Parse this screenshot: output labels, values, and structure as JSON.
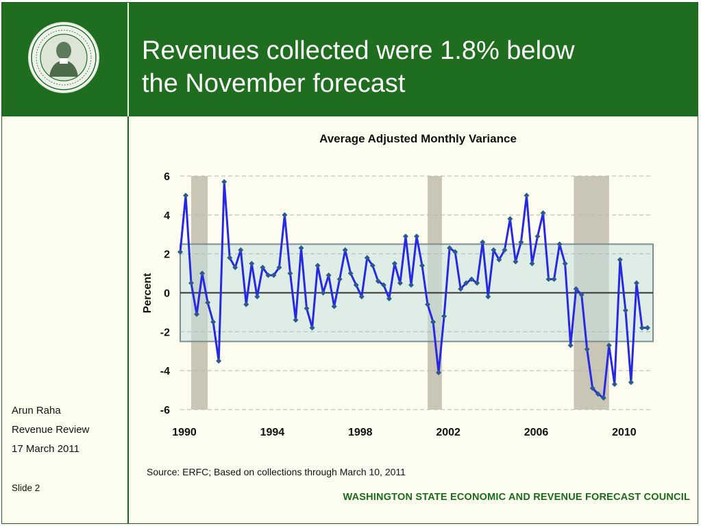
{
  "slide": {
    "title_line1": "Revenues collected were 1.8% below",
    "title_line2": "the November forecast",
    "presenter": "Arun Raha",
    "event": "Revenue Review",
    "date": "17 March 2011",
    "slide_label": "Slide 2",
    "source": "Source: ERFC; Based on collections through March 10, 2011",
    "organization": "WASHINGTON STATE ECONOMIC AND REVENUE FORECAST COUNCIL",
    "logo_icon": "washington-state-seal-icon",
    "colors": {
      "header_green": "#1f6e1f",
      "footer_green": "#1a6b1a",
      "line_blue": "#2727e6"
    }
  },
  "chart_data": {
    "type": "line",
    "title": "Average Adjusted Monthly Variance",
    "ylabel": "Percent",
    "xlabel": "",
    "ylim": [
      -6,
      6
    ],
    "xlim": [
      1990,
      2011.5
    ],
    "x_ticks": [
      1990,
      1994,
      1998,
      2002,
      2006,
      2010
    ],
    "y_ticks": [
      6,
      4,
      2,
      0,
      -2,
      -4,
      -6
    ],
    "grid": "horizontal dashed",
    "band": [
      -2.5,
      2.5
    ],
    "recessions": [
      [
        1990.5,
        1991.25
      ],
      [
        2001.25,
        2001.9
      ],
      [
        2007.9,
        2009.5
      ]
    ],
    "series": [
      {
        "x": [
          1990.0,
          1990.25,
          1990.5,
          1990.75,
          1991.0,
          1991.25,
          1991.5,
          1991.75,
          1992.0,
          1992.25,
          1992.5,
          1992.75,
          1993.0,
          1993.25,
          1993.5,
          1993.75,
          1994.0,
          1994.25,
          1994.5,
          1994.75,
          1995.0,
          1995.25,
          1995.5,
          1995.75,
          1996.0,
          1996.25,
          1996.5,
          1996.75,
          1997.0,
          1997.25,
          1997.5,
          1997.75,
          1998.0,
          1998.25,
          1998.5,
          1998.75,
          1999.0,
          1999.25,
          1999.5,
          1999.75,
          2000.0,
          2000.25,
          2000.5,
          2000.75,
          2001.0,
          2001.25,
          2001.5,
          2001.75,
          2002.0,
          2002.25,
          2002.5,
          2002.75,
          2003.0,
          2003.25,
          2003.5,
          2003.75,
          2004.0,
          2004.25,
          2004.5,
          2004.75,
          2005.0,
          2005.25,
          2005.5,
          2005.75,
          2006.0,
          2006.25,
          2006.5,
          2006.75,
          2007.0,
          2007.25,
          2007.5,
          2007.75,
          2008.0,
          2008.25,
          2008.5,
          2008.75,
          2009.0,
          2009.25,
          2009.5,
          2009.75,
          2010.0,
          2010.25,
          2010.5,
          2010.75,
          2011.0,
          2011.25
        ],
        "values": [
          2.1,
          5.0,
          0.5,
          -1.1,
          1.0,
          -0.5,
          -1.5,
          -3.5,
          5.7,
          1.8,
          1.3,
          2.2,
          -0.6,
          1.5,
          -0.2,
          1.3,
          0.9,
          0.9,
          1.3,
          4.0,
          1.0,
          -1.4,
          2.3,
          -0.8,
          -1.8,
          1.4,
          0.0,
          0.9,
          -0.7,
          0.7,
          2.2,
          1.0,
          0.4,
          -0.2,
          1.8,
          1.4,
          0.6,
          0.4,
          -0.3,
          1.5,
          0.5,
          2.9,
          0.4,
          2.9,
          1.4,
          -0.6,
          -1.5,
          -4.1,
          -1.2,
          2.3,
          2.1,
          0.2,
          0.5,
          0.7,
          0.5,
          2.6,
          -0.2,
          2.2,
          1.7,
          2.2,
          3.8,
          1.6,
          2.6,
          5.0,
          1.5,
          2.9,
          4.1,
          0.7,
          0.7,
          2.5,
          1.5,
          -2.7,
          0.2,
          -0.1,
          -2.9,
          -4.9,
          -5.2,
          -5.4,
          -2.7,
          -4.7,
          1.7,
          -0.9,
          -4.6,
          0.5,
          -1.8,
          -1.8
        ]
      }
    ]
  }
}
